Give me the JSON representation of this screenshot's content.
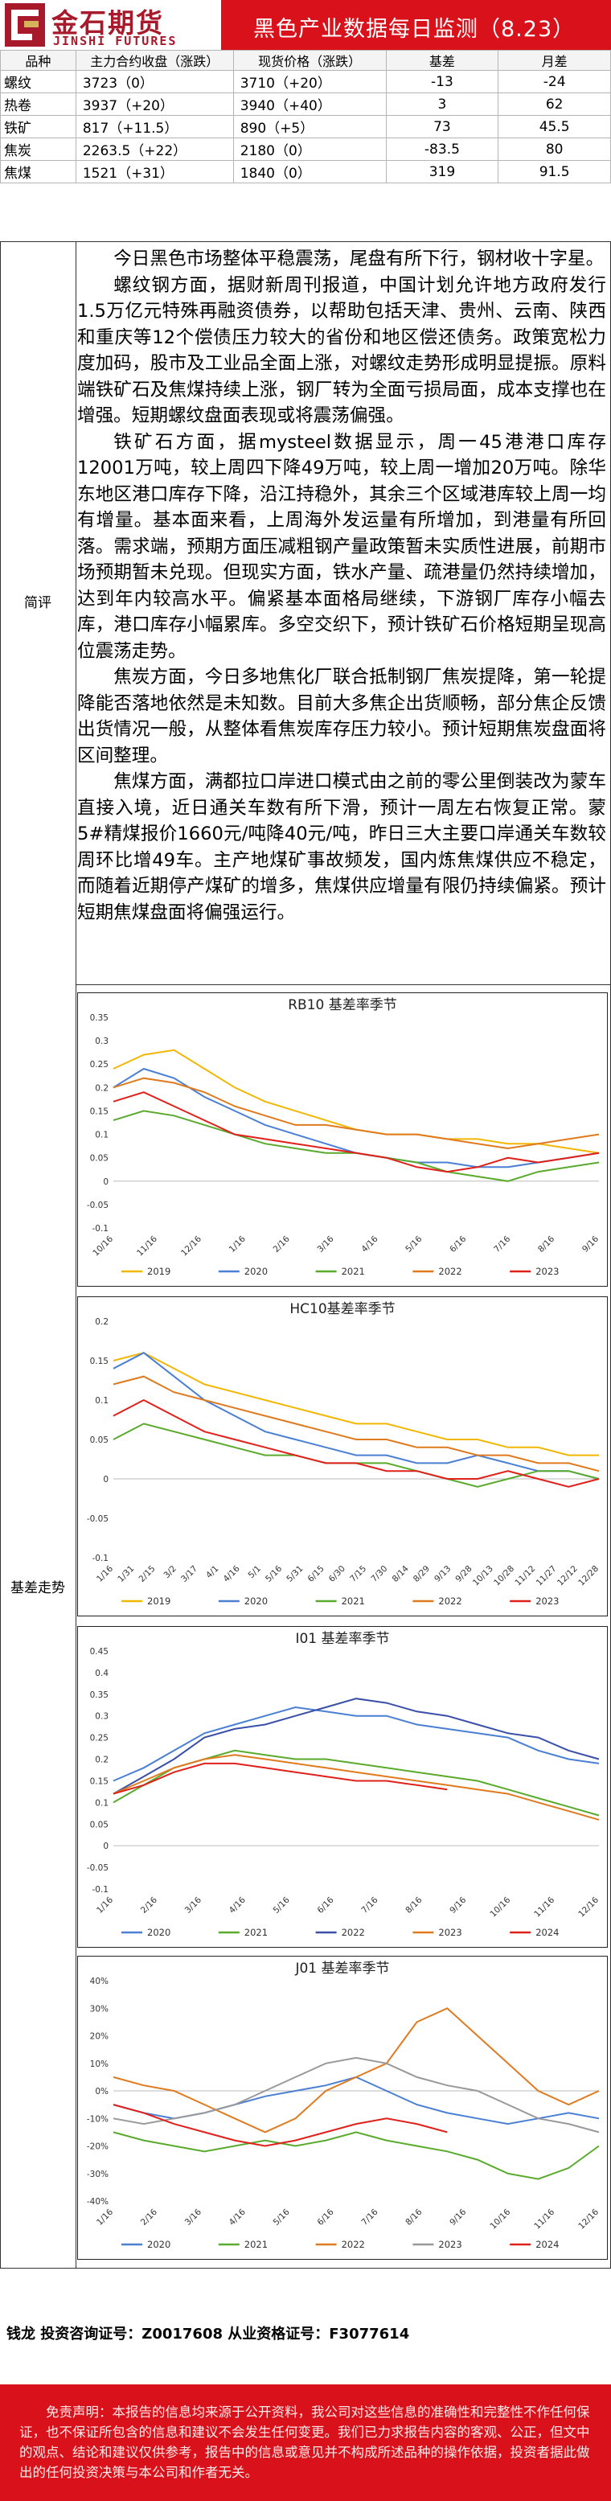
{
  "header": {
    "logo_cn": "金石期货",
    "logo_en": "JINSHI FUTURES",
    "title": "黑色产业数据每日监测（8.23）"
  },
  "table": {
    "columns": [
      "品种",
      "主力合约收盘（涨跌）",
      "现货价格（涨跌）",
      "基差",
      "月差"
    ],
    "rows": [
      {
        "name": "螺纹",
        "close": "3723（0）",
        "spot": "3710（+20）",
        "basis": "-13",
        "spread": "-24"
      },
      {
        "name": "热卷",
        "close": "3937（+20）",
        "spot": "3940（+40）",
        "basis": "3",
        "spread": "62"
      },
      {
        "name": "铁矿",
        "close": "817（+11.5）",
        "spot": "890（+5）",
        "basis": "73",
        "spread": "45.5"
      },
      {
        "name": "焦炭",
        "close": "2263.5（+22）",
        "spot": "2180（0）",
        "basis": "-83.5",
        "spread": "80"
      },
      {
        "name": "焦煤",
        "close": "1521（+31）",
        "spot": "1840（0）",
        "basis": "319",
        "spread": "91.5"
      }
    ]
  },
  "labels": {
    "commentary": "简评",
    "basis": "基差走势"
  },
  "commentary": [
    "今日黑色市场整体平稳震荡，尾盘有所下行，钢材收十字星。",
    "螺纹钢方面，据财新周刊报道，中国计划允许地方政府发行1.5万亿元特殊再融资债券，以帮助包括天津、贵州、云南、陕西和重庆等12个偿债压力较大的省份和地区偿还债务。政策宽松力度加码，股市及工业品全面上涨，对螺纹走势形成明显提振。原料端铁矿石及焦煤持续上涨，钢厂转为全面亏损局面，成本支撑也在增强。短期螺纹盘面表现或将震荡偏强。",
    "铁矿石方面，据mysteel数据显示，周一45港港口库存12001万吨，较上周四下降49万吨，较上周一增加20万吨。除华东地区港口库存下降，沿江持稳外，其余三个区域港库较上周一均有增量。基本面来看，上周海外发运量有所增加，到港量有所回落。需求端，预期方面压减粗钢产量政策暂未实质性进展，前期市场预期暂未兑现。但现实方面，铁水产量、疏港量仍然持续增加，达到年内较高水平。偏紧基本面格局继续，下游钢厂库存小幅去库，港口库存小幅累库。多空交织下，预计铁矿石价格短期呈现高位震荡走势。",
    "焦炭方面，今日多地焦化厂联合抵制钢厂焦炭提降，第一轮提降能否落地依然是未知数。目前大多焦企出货顺畅，部分焦企反馈出货情况一般，从整体看焦炭库存压力较小。预计短期焦炭盘面将区间整理。",
    "焦煤方面，满都拉口岸进口模式由之前的零公里倒装改为蒙车直接入境，近日通关车数有所下滑，预计一周左右恢复正常。蒙5#精煤报价1660元/吨降40元/吨，昨日三大主要口岸通关车数较周环比增49车。主产地煤矿事故频发，国内炼焦煤供应不稳定，而随着近期停产煤矿的增多，焦煤供应增量有限仍持续偏紧。预计短期焦煤盘面将偏强运行。"
  ],
  "footer": {
    "analyst": "钱龙 投资咨询证号：Z0017608 从业资格证号：F3077614",
    "disclaimer": "免责声明：本报告的信息均来源于公开资料，我公司对这些信息的准确性和完整性不作任何保证，也不保证所包含的信息和建议不会发生任何变更。我们已力求报告内容的客观、公正，但文中的观点、结论和建议仅供参考，报告中的信息或意见并不构成所述品种的操作依据，投资者据此做出的任何投资决策与本公司和作者无关。"
  },
  "chart_data": [
    {
      "type": "line",
      "title": "RB10 基差率季节",
      "ylim": [
        -0.1,
        0.35
      ],
      "yticks": [
        "0.35",
        "0.3",
        "0.25",
        "0.2",
        "0.15",
        "0.1",
        "0.05",
        "0",
        "-0.05",
        "-0.1"
      ],
      "x_ticks": [
        "10/16",
        "11/16",
        "12/16",
        "1/16",
        "2/16",
        "3/16",
        "4/16",
        "5/16",
        "6/16",
        "7/16",
        "8/16",
        "9/16"
      ],
      "series": [
        {
          "name": "2019",
          "color": "#f2b705",
          "values": [
            0.24,
            0.27,
            0.28,
            0.24,
            0.2,
            0.17,
            0.15,
            0.13,
            0.11,
            0.1,
            0.1,
            0.09,
            0.09,
            0.08,
            0.08,
            0.07,
            0.06
          ]
        },
        {
          "name": "2020",
          "color": "#4a7fd4",
          "values": [
            0.2,
            0.24,
            0.22,
            0.18,
            0.15,
            0.12,
            0.1,
            0.08,
            0.06,
            0.05,
            0.04,
            0.04,
            0.03,
            0.03,
            0.04,
            0.05,
            0.06
          ]
        },
        {
          "name": "2021",
          "color": "#5aaa2e",
          "values": [
            0.13,
            0.15,
            0.14,
            0.12,
            0.1,
            0.08,
            0.07,
            0.06,
            0.06,
            0.05,
            0.04,
            0.02,
            0.01,
            0.0,
            0.02,
            0.03,
            0.04
          ]
        },
        {
          "name": "2022",
          "color": "#e07a1f",
          "values": [
            0.2,
            0.22,
            0.21,
            0.19,
            0.16,
            0.14,
            0.12,
            0.12,
            0.11,
            0.1,
            0.1,
            0.09,
            0.08,
            0.07,
            0.08,
            0.09,
            0.1
          ]
        },
        {
          "name": "2023",
          "color": "#e0201b",
          "values": [
            0.17,
            0.19,
            0.16,
            0.13,
            0.1,
            0.09,
            0.08,
            0.07,
            0.06,
            0.05,
            0.03,
            0.02,
            0.03,
            0.05,
            0.04,
            0.05,
            0.06
          ]
        }
      ]
    },
    {
      "type": "line",
      "title": "HC10基差率季节",
      "ylim": [
        -0.1,
        0.2
      ],
      "yticks": [
        "0.2",
        "0.15",
        "0.1",
        "0.05",
        "0",
        "-0.05",
        "-0.1"
      ],
      "x_ticks": [
        "1/16",
        "1/31",
        "2/15",
        "3/2",
        "3/17",
        "4/1",
        "4/16",
        "5/1",
        "5/16",
        "5/31",
        "6/15",
        "6/30",
        "7/15",
        "7/30",
        "8/14",
        "8/29",
        "9/13",
        "9/28",
        "10/13",
        "10/28",
        "11/12",
        "11/27",
        "12/12",
        "12/28"
      ],
      "series": [
        {
          "name": "2019",
          "color": "#f2b705",
          "values": [
            0.15,
            0.16,
            0.14,
            0.12,
            0.11,
            0.1,
            0.09,
            0.08,
            0.07,
            0.07,
            0.06,
            0.05,
            0.05,
            0.04,
            0.04,
            0.03,
            0.03
          ]
        },
        {
          "name": "2020",
          "color": "#4a7fd4",
          "values": [
            0.14,
            0.16,
            0.13,
            0.1,
            0.08,
            0.06,
            0.05,
            0.04,
            0.03,
            0.03,
            0.02,
            0.02,
            0.03,
            0.02,
            0.01,
            0.01,
            0.0
          ]
        },
        {
          "name": "2021",
          "color": "#5aaa2e",
          "values": [
            0.05,
            0.07,
            0.06,
            0.05,
            0.04,
            0.03,
            0.03,
            0.02,
            0.02,
            0.02,
            0.01,
            0.0,
            -0.01,
            0.0,
            0.01,
            0.01,
            0.0
          ]
        },
        {
          "name": "2022",
          "color": "#e07a1f",
          "values": [
            0.12,
            0.13,
            0.11,
            0.1,
            0.09,
            0.08,
            0.07,
            0.06,
            0.05,
            0.05,
            0.04,
            0.04,
            0.03,
            0.03,
            0.02,
            0.02,
            0.01
          ]
        },
        {
          "name": "2023",
          "color": "#e0201b",
          "values": [
            0.08,
            0.1,
            0.08,
            0.06,
            0.05,
            0.04,
            0.03,
            0.02,
            0.02,
            0.01,
            0.01,
            0.0,
            0.0,
            0.01,
            0.0,
            -0.01,
            0.0
          ]
        }
      ]
    },
    {
      "type": "line",
      "title": "I01 基差率季节",
      "ylim": [
        -0.1,
        0.45
      ],
      "yticks": [
        "0.45",
        "0.4",
        "0.35",
        "0.3",
        "0.25",
        "0.2",
        "0.15",
        "0.1",
        "0.05",
        "0",
        "-0.05",
        "-0.1"
      ],
      "x_ticks": [
        "1/16",
        "2/16",
        "3/16",
        "4/16",
        "5/16",
        "6/16",
        "7/16",
        "8/16",
        "9/16",
        "10/16",
        "11/16",
        "12/16"
      ],
      "series": [
        {
          "name": "2020",
          "color": "#4a7fd4",
          "values": [
            0.15,
            0.18,
            0.22,
            0.26,
            0.28,
            0.3,
            0.32,
            0.31,
            0.3,
            0.3,
            0.28,
            0.27,
            0.26,
            0.25,
            0.22,
            0.2,
            0.19
          ]
        },
        {
          "name": "2021",
          "color": "#5aaa2e",
          "values": [
            0.1,
            0.14,
            0.18,
            0.2,
            0.22,
            0.21,
            0.2,
            0.2,
            0.19,
            0.18,
            0.17,
            0.16,
            0.15,
            0.13,
            0.11,
            0.09,
            0.07
          ]
        },
        {
          "name": "2022",
          "color": "#3a4fa8",
          "values": [
            0.12,
            0.16,
            0.2,
            0.25,
            0.27,
            0.28,
            0.3,
            0.32,
            0.34,
            0.33,
            0.31,
            0.3,
            0.28,
            0.26,
            0.25,
            0.22,
            0.2
          ]
        },
        {
          "name": "2023",
          "color": "#e07a1f",
          "values": [
            0.12,
            0.15,
            0.18,
            0.2,
            0.21,
            0.2,
            0.19,
            0.18,
            0.17,
            0.16,
            0.15,
            0.14,
            0.13,
            0.12,
            0.1,
            0.08,
            0.06
          ]
        },
        {
          "name": "2024",
          "color": "#e0201b",
          "values": [
            0.12,
            0.14,
            0.17,
            0.19,
            0.19,
            0.18,
            0.17,
            0.16,
            0.15,
            0.15,
            0.14,
            0.13
          ]
        }
      ]
    },
    {
      "type": "line",
      "title": "J01 基差率季节",
      "ylim": [
        -0.4,
        0.4
      ],
      "yticks": [
        "40%",
        "30%",
        "20%",
        "10%",
        "0%",
        "-10%",
        "-20%",
        "-30%",
        "-40%"
      ],
      "x_ticks": [
        "1/16",
        "2/16",
        "3/16",
        "4/16",
        "5/16",
        "6/16",
        "7/16",
        "8/16",
        "9/16",
        "10/16",
        "11/16",
        "12/16"
      ],
      "series": [
        {
          "name": "2020",
          "color": "#4a7fd4",
          "values": [
            -0.05,
            -0.08,
            -0.1,
            -0.08,
            -0.05,
            -0.02,
            0.0,
            0.02,
            0.05,
            0.0,
            -0.05,
            -0.08,
            -0.1,
            -0.12,
            -0.1,
            -0.08,
            -0.1
          ]
        },
        {
          "name": "2021",
          "color": "#5aaa2e",
          "values": [
            -0.15,
            -0.18,
            -0.2,
            -0.22,
            -0.2,
            -0.18,
            -0.2,
            -0.18,
            -0.15,
            -0.18,
            -0.2,
            -0.22,
            -0.25,
            -0.3,
            -0.32,
            -0.28,
            -0.2
          ]
        },
        {
          "name": "2022",
          "color": "#e07a1f",
          "values": [
            0.05,
            0.02,
            0.0,
            -0.05,
            -0.1,
            -0.15,
            -0.1,
            0.0,
            0.05,
            0.1,
            0.25,
            0.3,
            0.2,
            0.1,
            0.0,
            -0.05,
            0.0
          ]
        },
        {
          "name": "2023",
          "color": "#999999",
          "values": [
            -0.1,
            -0.12,
            -0.1,
            -0.08,
            -0.05,
            0.0,
            0.05,
            0.1,
            0.12,
            0.1,
            0.05,
            0.02,
            0.0,
            -0.05,
            -0.1,
            -0.12,
            -0.15
          ]
        },
        {
          "name": "2024",
          "color": "#e0201b",
          "values": [
            -0.05,
            -0.08,
            -0.12,
            -0.15,
            -0.18,
            -0.2,
            -0.18,
            -0.15,
            -0.12,
            -0.1,
            -0.12,
            -0.15
          ]
        }
      ]
    }
  ]
}
